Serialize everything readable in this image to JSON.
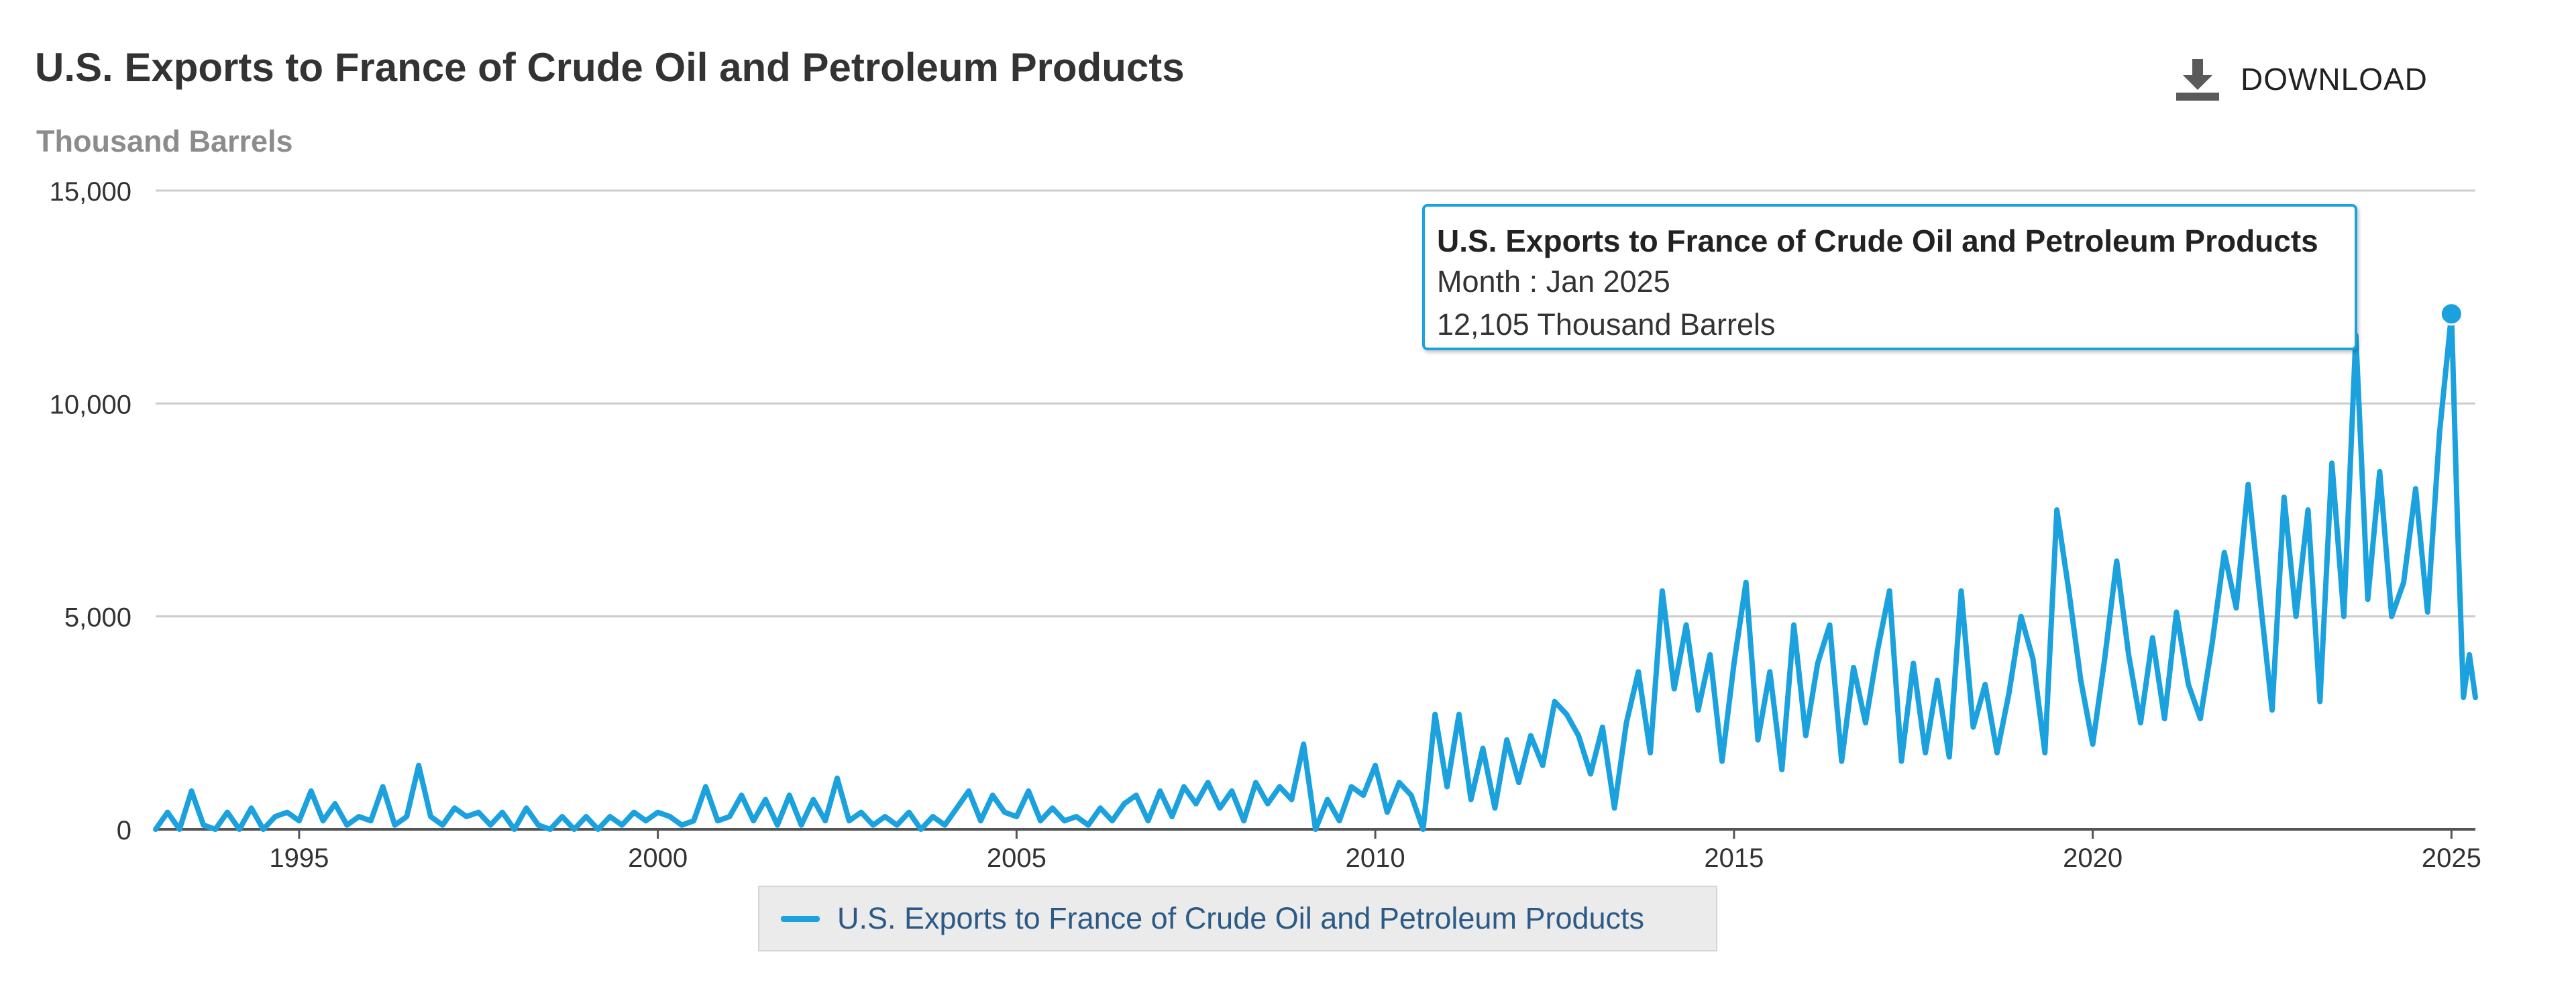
{
  "header": {
    "title": "U.S. Exports to France of Crude Oil and Petroleum Products",
    "unit_label": "Thousand Barrels",
    "download_label": "DOWNLOAD"
  },
  "tooltip": {
    "title": "U.S. Exports to France of Crude Oil and Petroleum Products",
    "month_line": "Month : Jan 2025",
    "value_line": "12,105 Thousand Barrels"
  },
  "legend": {
    "label": "U.S. Exports to France of Crude Oil and Petroleum Products"
  },
  "colors": {
    "series": "#1ba1dd",
    "grid": "#cccccc",
    "axis": "#555555",
    "tooltip_border": "#1ba1dd"
  },
  "icons": {
    "download": "download-icon"
  },
  "chart_data": {
    "type": "line",
    "title": "U.S. Exports to France of Crude Oil and Petroleum Products",
    "ylabel": "Thousand Barrels",
    "xlabel": "",
    "ylim": [
      0,
      15000
    ],
    "xlim": [
      "1993-01",
      "2025-05"
    ],
    "y_ticks": [
      0,
      5000,
      10000,
      15000
    ],
    "y_tick_labels": [
      "0",
      "5,000",
      "10,000",
      "15,000"
    ],
    "x_ticks": [
      1995,
      2000,
      2005,
      2010,
      2015,
      2020,
      2025
    ],
    "x_tick_labels": [
      "1995",
      "2000",
      "2005",
      "2010",
      "2015",
      "2020",
      "2025"
    ],
    "grid": "horizontal",
    "legend_position": "bottom-center",
    "highlight": {
      "x": "2025-01",
      "y": 12105
    },
    "series": [
      {
        "name": "U.S. Exports to France of Crude Oil and Petroleum Products",
        "x": [
          "1993-01",
          "1993-03",
          "1993-05",
          "1993-07",
          "1993-09",
          "1993-11",
          "1994-01",
          "1994-03",
          "1994-05",
          "1994-07",
          "1994-09",
          "1994-11",
          "1995-01",
          "1995-03",
          "1995-05",
          "1995-07",
          "1995-09",
          "1995-11",
          "1996-01",
          "1996-03",
          "1996-05",
          "1996-07",
          "1996-09",
          "1996-11",
          "1997-01",
          "1997-03",
          "1997-05",
          "1997-07",
          "1997-09",
          "1997-11",
          "1998-01",
          "1998-03",
          "1998-05",
          "1998-07",
          "1998-09",
          "1998-11",
          "1999-01",
          "1999-03",
          "1999-05",
          "1999-07",
          "1999-09",
          "1999-11",
          "2000-01",
          "2000-03",
          "2000-05",
          "2000-07",
          "2000-09",
          "2000-11",
          "2001-01",
          "2001-03",
          "2001-05",
          "2001-07",
          "2001-09",
          "2001-11",
          "2002-01",
          "2002-03",
          "2002-05",
          "2002-07",
          "2002-09",
          "2002-11",
          "2003-01",
          "2003-03",
          "2003-05",
          "2003-07",
          "2003-09",
          "2003-11",
          "2004-01",
          "2004-03",
          "2004-05",
          "2004-07",
          "2004-09",
          "2004-11",
          "2005-01",
          "2005-03",
          "2005-05",
          "2005-07",
          "2005-09",
          "2005-11",
          "2006-01",
          "2006-03",
          "2006-05",
          "2006-07",
          "2006-09",
          "2006-11",
          "2007-01",
          "2007-03",
          "2007-05",
          "2007-07",
          "2007-09",
          "2007-11",
          "2008-01",
          "2008-03",
          "2008-05",
          "2008-07",
          "2008-09",
          "2008-11",
          "2009-01",
          "2009-03",
          "2009-05",
          "2009-07",
          "2009-09",
          "2009-11",
          "2010-01",
          "2010-03",
          "2010-05",
          "2010-07",
          "2010-09",
          "2010-11",
          "2011-01",
          "2011-03",
          "2011-05",
          "2011-07",
          "2011-09",
          "2011-11",
          "2012-01",
          "2012-03",
          "2012-05",
          "2012-07",
          "2012-09",
          "2012-11",
          "2013-01",
          "2013-03",
          "2013-05",
          "2013-07",
          "2013-09",
          "2013-11",
          "2014-01",
          "2014-03",
          "2014-05",
          "2014-07",
          "2014-09",
          "2014-11",
          "2015-01",
          "2015-03",
          "2015-05",
          "2015-07",
          "2015-09",
          "2015-11",
          "2016-01",
          "2016-03",
          "2016-05",
          "2016-07",
          "2016-09",
          "2016-11",
          "2017-01",
          "2017-03",
          "2017-05",
          "2017-07",
          "2017-09",
          "2017-11",
          "2018-01",
          "2018-03",
          "2018-05",
          "2018-07",
          "2018-09",
          "2018-11",
          "2019-01",
          "2019-03",
          "2019-05",
          "2019-07",
          "2019-09",
          "2019-11",
          "2020-01",
          "2020-03",
          "2020-05",
          "2020-07",
          "2020-09",
          "2020-11",
          "2021-01",
          "2021-03",
          "2021-05",
          "2021-07",
          "2021-09",
          "2021-11",
          "2022-01",
          "2022-03",
          "2022-05",
          "2022-07",
          "2022-09",
          "2022-11",
          "2023-01",
          "2023-03",
          "2023-05",
          "2023-07",
          "2023-09",
          "2023-11",
          "2024-01",
          "2024-03",
          "2024-05",
          "2024-07",
          "2024-09",
          "2024-11",
          "2025-01",
          "2025-02",
          "2025-03",
          "2025-04",
          "2025-05"
        ],
        "values": [
          0,
          400,
          0,
          900,
          100,
          0,
          400,
          0,
          500,
          0,
          300,
          400,
          200,
          900,
          200,
          600,
          100,
          300,
          200,
          1000,
          100,
          300,
          1500,
          300,
          100,
          500,
          300,
          400,
          100,
          400,
          0,
          500,
          100,
          0,
          300,
          0,
          300,
          0,
          300,
          100,
          400,
          200,
          400,
          300,
          100,
          200,
          1000,
          200,
          300,
          800,
          200,
          700,
          100,
          800,
          100,
          700,
          200,
          1200,
          200,
          400,
          100,
          300,
          100,
          400,
          0,
          300,
          100,
          500,
          900,
          200,
          800,
          400,
          300,
          900,
          200,
          500,
          200,
          300,
          100,
          500,
          200,
          600,
          800,
          200,
          900,
          300,
          1000,
          600,
          1100,
          500,
          900,
          200,
          1100,
          600,
          1000,
          700,
          2000,
          0,
          700,
          200,
          1000,
          800,
          1500,
          400,
          1100,
          800,
          0,
          2700,
          1000,
          2700,
          700,
          1900,
          500,
          2100,
          1100,
          2200,
          1500,
          3000,
          2700,
          2200,
          1300,
          2400,
          500,
          2500,
          3700,
          1800,
          5600,
          3300,
          4800,
          2800,
          4100,
          1600,
          3900,
          5800,
          2100,
          3700,
          1400,
          4800,
          2200,
          3900,
          4800,
          1600,
          3800,
          2500,
          4200,
          5600,
          1600,
          3900,
          1800,
          3500,
          1700,
          5600,
          2400,
          3400,
          1800,
          3200,
          5000,
          4000,
          1800,
          7500,
          5600,
          3500,
          2000,
          4000,
          6300,
          4100,
          2500,
          4500,
          2600,
          5100,
          3400,
          2600,
          4400,
          6500,
          5200,
          8100,
          5400,
          2800,
          7800,
          5000,
          7500,
          3000,
          8600,
          5000,
          11600,
          5400,
          8400,
          5000,
          5800,
          8000,
          5100,
          9300,
          12105,
          7200,
          3100,
          4100,
          3100
        ]
      }
    ]
  }
}
